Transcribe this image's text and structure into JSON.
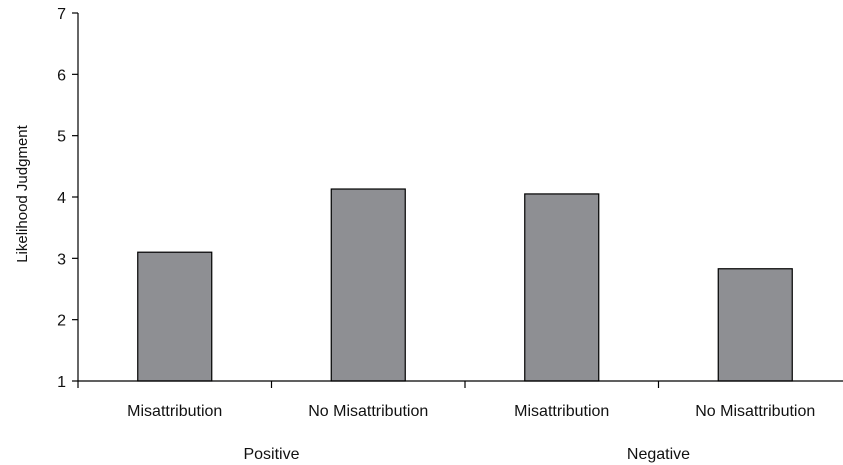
{
  "chart_data": {
    "type": "bar",
    "ylabel": "Likelihood Judgment",
    "xlabel": "",
    "ylim": [
      1,
      7
    ],
    "yticks": [
      1,
      2,
      3,
      4,
      5,
      6,
      7
    ],
    "grid": false,
    "categories": [
      "Misattribution",
      "No Misattribution",
      "Misattribution",
      "No Misattribution"
    ],
    "groups": [
      {
        "label": "Positive",
        "categories": [
          0,
          1
        ]
      },
      {
        "label": "Negative",
        "categories": [
          2,
          3
        ]
      }
    ],
    "values": [
      3.1,
      4.13,
      4.05,
      2.83
    ],
    "bar_color": "#8e8f93",
    "bar_edge_color": "#000000"
  }
}
